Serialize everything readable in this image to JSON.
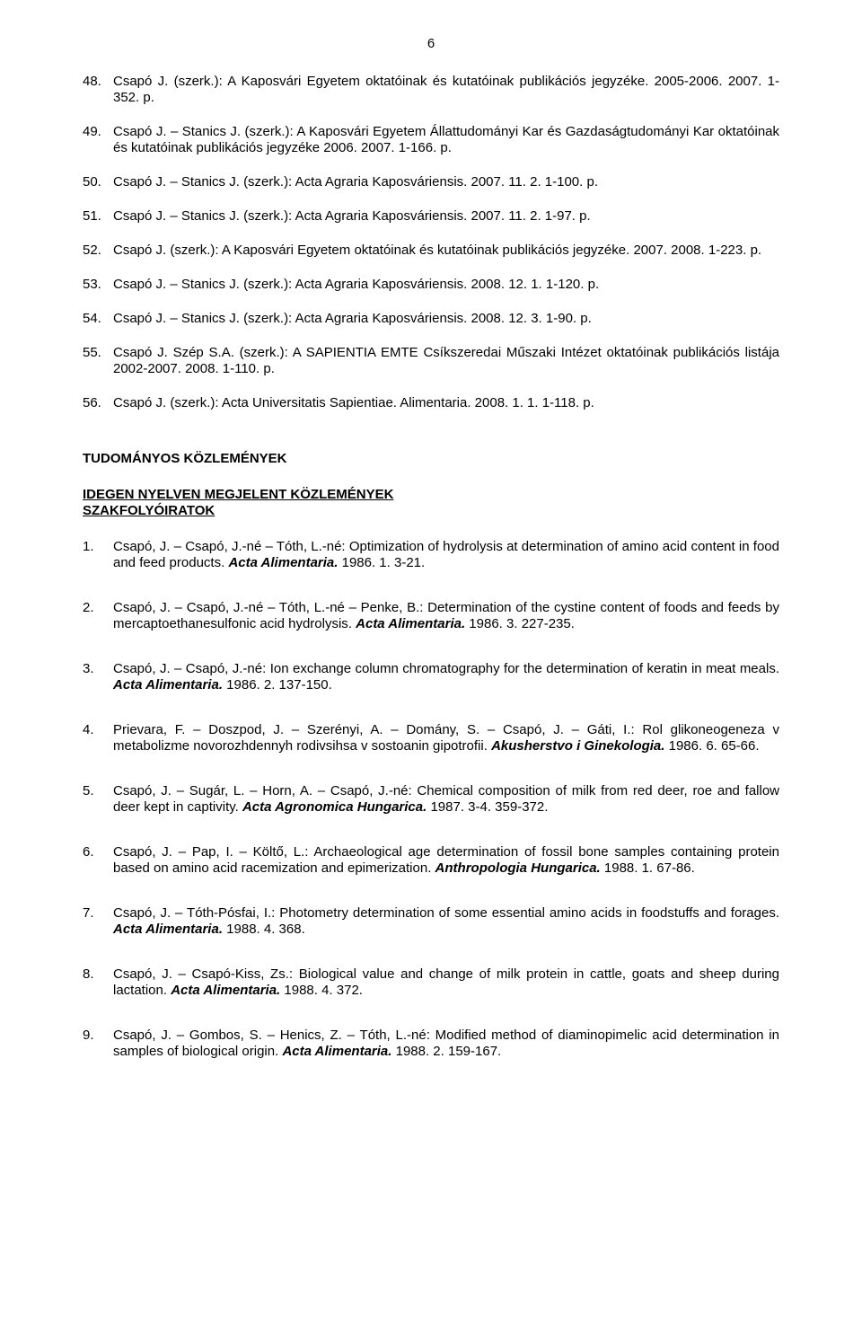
{
  "pageNumber": "6",
  "items": [
    {
      "n": "48.",
      "html": "Csapó J. (szerk.): A Kaposvári Egyetem oktatóinak és kutatóinak publikációs jegyzéke. 2005-2006. 2007. 1-352. p."
    },
    {
      "n": "49.",
      "html": "Csapó J. – Stanics J. (szerk.): A Kaposvári Egyetem Állattudományi Kar és Gazdaságtudományi Kar oktatóinak és kutatóinak publikációs jegyzéke 2006. 2007. 1-166. p."
    },
    {
      "n": "50.",
      "html": "Csapó J. – Stanics J. (szerk.): Acta Agraria Kaposváriensis. 2007. 11. 2. 1-100. p."
    },
    {
      "n": "51.",
      "html": "Csapó J. – Stanics J. (szerk.): Acta Agraria Kaposváriensis. 2007. 11. 2. 1-97. p."
    },
    {
      "n": "52.",
      "html": "Csapó J. (szerk.): A Kaposvári Egyetem oktatóinak és kutatóinak publikációs jegyzéke. 2007. 2008. 1-223. p."
    },
    {
      "n": "53.",
      "html": "Csapó J. – Stanics J. (szerk.): Acta Agraria Kaposváriensis. 2008. 12. 1. 1-120. p."
    },
    {
      "n": "54.",
      "html": "Csapó J. – Stanics J. (szerk.): Acta Agraria Kaposváriensis. 2008. 12. 3. 1-90. p."
    },
    {
      "n": "55.",
      "html": "Csapó J. Szép S.A. (szerk.): A SAPIENTIA EMTE Csíkszeredai Műszaki Intézet oktatóinak publikációs listája 2002-2007. 2008. 1-110. p."
    },
    {
      "n": "56.",
      "html": "Csapó J. (szerk.): Acta Universitatis Sapientiae. Alimentaria. 2008. 1. 1. 1-118. p."
    }
  ],
  "heading1": "TUDOMÁNYOS KÖZLEMÉNYEK",
  "heading2": "IDEGEN NYELVEN MEGJELENT KÖZLEMÉNYEK",
  "heading3": "SZAKFOLYÓIRATOK",
  "pubs": [
    {
      "n": "1.",
      "html": "Csapó, J. – Csapó, J.-né – Tóth, L.-né: Optimization of hydrolysis at determination of amino acid content in food and feed products. <i>Acta Alimentaria.</i> 1986. 1. 3-21."
    },
    {
      "n": "2.",
      "html": "Csapó, J. – Csapó, J.-né – Tóth, L.-né – Penke, B.: Determination of the cystine content of foods and feeds by mercaptoethanesulfonic acid hydrolysis. <i>Acta Alimentaria.</i> 1986. 3. 227-235."
    },
    {
      "n": "3.",
      "html": "Csapó, J. – Csapó, J.-né: Ion exchange column chromatography for the determination of keratin in meat meals. <i>Acta Alimentaria.</i> 1986. 2. 137-150."
    },
    {
      "n": "4.",
      "html": "Prievara, F. – Doszpod, J. – Szerényi, A. – Domány, S. – Csapó, J. – Gáti, I.: Rol glikoneogeneza v metabolizme novorozhdennyh rodivsihsa v sostoanin gipotrofii. <i>Akusherstvo i Ginekologia.</i> 1986. 6. 65-66."
    },
    {
      "n": "5.",
      "html": "Csapó, J. – Sugár, L. – Horn, A. – Csapó, J.-né: Chemical composition of milk from red deer, roe and fallow deer kept in captivity. <i>Acta Agronomica Hungarica.</i> 1987. 3-4. 359-372."
    },
    {
      "n": "6.",
      "html": "Csapó, J. – Pap, I. – Költő, L.: Archaeological age determination of fossil bone samples containing protein based on amino acid racemization and epimerization. <i>Anthropologia Hungarica.</i> 1988. 1. 67-86."
    },
    {
      "n": "7.",
      "html": "Csapó, J. – Tóth-Pósfai, I.: Photometry determination of some essential amino acids in foodstuffs and forages. <i>Acta Alimentaria.</i> 1988. 4. 368."
    },
    {
      "n": "8.",
      "html": "Csapó, J. – Csapó-Kiss, Zs.: Biological value and change of milk protein in cattle, goats and sheep during lactation. <i>Acta Alimentaria.</i> 1988. 4. 372."
    },
    {
      "n": "9.",
      "html": "Csapó, J. – Gombos, S. – Henics, Z. – Tóth, L.-né: Modified method of diaminopimelic acid determination in samples of biological origin. <i>Acta Alimentaria.</i> 1988. 2. 159-167."
    }
  ]
}
